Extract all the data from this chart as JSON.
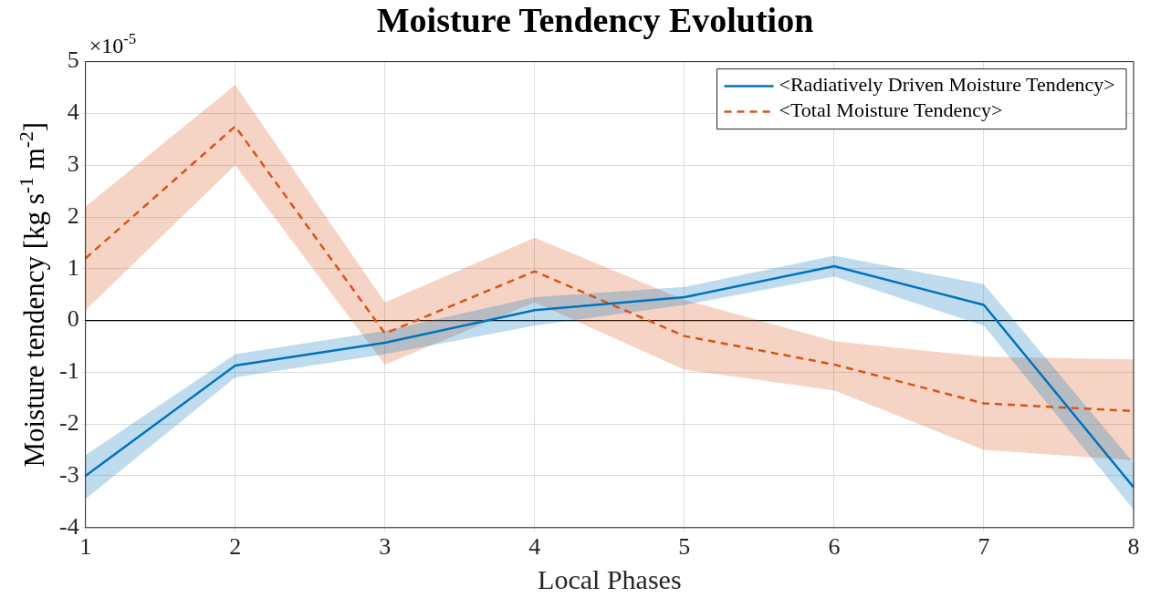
{
  "chart_data": {
    "type": "line",
    "title": "Moisture Tendency Evolution",
    "xlabel": "Local Phases",
    "ylabel": "Moisture tendency [kg s$^{-1}$ m$^{-2}$]",
    "annotations": [
      "×10$^{-5}$"
    ],
    "x": [
      1,
      2,
      3,
      4,
      5,
      6,
      7,
      8
    ],
    "xlim": [
      1,
      8
    ],
    "xticks": [
      1,
      2,
      3,
      4,
      5,
      6,
      7,
      8
    ],
    "ylim": [
      -4,
      5
    ],
    "yticks": [
      -4,
      -3,
      -2,
      -1,
      0,
      1,
      2,
      3,
      4,
      5
    ],
    "grid": true,
    "legend": "top right",
    "marker": "none",
    "ref_lines": [
      {
        "axis": "y",
        "value": 0,
        "color": "#000000"
      }
    ],
    "series": [
      {
        "name": "<Radiatively Driven Moisture Tendency>",
        "color": "#0072bd",
        "line_style": "solid",
        "values": [
          -3.0,
          -0.87,
          -0.43,
          0.2,
          0.45,
          1.05,
          0.3,
          -3.22
        ],
        "lower": [
          -3.45,
          -1.1,
          -0.65,
          -0.1,
          0.3,
          0.85,
          -0.1,
          -3.65
        ],
        "upper": [
          -2.6,
          -0.65,
          -0.2,
          0.45,
          0.65,
          1.25,
          0.7,
          -2.75
        ]
      },
      {
        "name": "<Total Moisture Tendency>",
        "color": "#d95319",
        "line_style": "dashed",
        "values": [
          1.2,
          3.75,
          -0.25,
          0.95,
          -0.3,
          -0.85,
          -1.6,
          -1.75
        ],
        "lower": [
          0.2,
          3.0,
          -0.85,
          0.35,
          -0.95,
          -1.35,
          -2.5,
          -2.7
        ],
        "upper": [
          2.2,
          4.55,
          0.35,
          1.6,
          0.4,
          -0.4,
          -0.7,
          -0.75
        ]
      }
    ]
  }
}
